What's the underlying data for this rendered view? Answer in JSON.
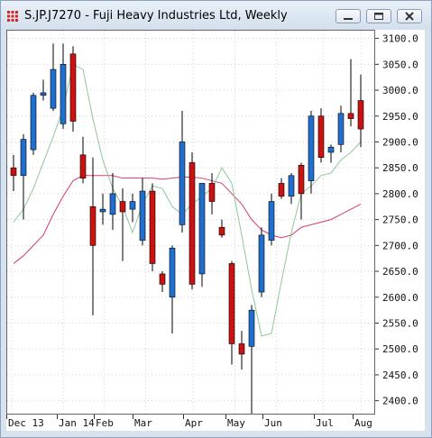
{
  "window": {
    "title": "S.JP.J7270 - Fuji Heavy Industries Ltd, Weekly"
  },
  "colors": {
    "up": "#1f6fcf",
    "down": "#cc1111",
    "ma_short": "#8fc79a",
    "ma_long": "#d63a78",
    "grid": "#d0d0d0"
  },
  "chart_data": {
    "type": "candlestick",
    "title": "S.JP.J7270 - Fuji Heavy Industries Ltd, Weekly",
    "ylim": [
      2375,
      3115
    ],
    "y_ticks": [
      "3100.0",
      "3050.0",
      "3000.0",
      "2950.0",
      "2900.0",
      "2850.0",
      "2800.0",
      "2750.0",
      "2700.0",
      "2650.0",
      "2600.0",
      "2550.0",
      "2500.0",
      "2450.0",
      "2400.0"
    ],
    "x_tick_labels": [
      "Dec 13",
      "Jan 14",
      "Feb",
      "Mar",
      "Apr",
      "May",
      "Jun",
      "Jul",
      "Aug"
    ],
    "candles": [
      {
        "o": 2850,
        "h": 2875,
        "l": 2805,
        "c": 2835
      },
      {
        "o": 2835,
        "h": 2915,
        "l": 2750,
        "c": 2905
      },
      {
        "o": 2885,
        "h": 2995,
        "l": 2875,
        "c": 2990
      },
      {
        "o": 2990,
        "h": 3020,
        "l": 2980,
        "c": 2995
      },
      {
        "o": 2965,
        "h": 3090,
        "l": 2960,
        "c": 3040
      },
      {
        "o": 2935,
        "h": 3090,
        "l": 2925,
        "c": 3050
      },
      {
        "o": 3070,
        "h": 3085,
        "l": 2920,
        "c": 2940
      },
      {
        "o": 2875,
        "h": 2910,
        "l": 2820,
        "c": 2830
      },
      {
        "o": 2775,
        "h": 2870,
        "l": 2565,
        "c": 2700
      },
      {
        "o": 2765,
        "h": 2800,
        "l": 2740,
        "c": 2770
      },
      {
        "o": 2760,
        "h": 2840,
        "l": 2730,
        "c": 2800
      },
      {
        "o": 2785,
        "h": 2810,
        "l": 2670,
        "c": 2765
      },
      {
        "o": 2770,
        "h": 2800,
        "l": 2745,
        "c": 2785
      },
      {
        "o": 2710,
        "h": 2830,
        "l": 2700,
        "c": 2805
      },
      {
        "o": 2805,
        "h": 2820,
        "l": 2650,
        "c": 2665
      },
      {
        "o": 2645,
        "h": 2650,
        "l": 2610,
        "c": 2625
      },
      {
        "o": 2600,
        "h": 2700,
        "l": 2530,
        "c": 2695
      },
      {
        "o": 2740,
        "h": 2960,
        "l": 2725,
        "c": 2900
      },
      {
        "o": 2860,
        "h": 2880,
        "l": 2615,
        "c": 2625
      },
      {
        "o": 2645,
        "h": 2820,
        "l": 2620,
        "c": 2820
      },
      {
        "o": 2820,
        "h": 2840,
        "l": 2760,
        "c": 2785
      },
      {
        "o": 2735,
        "h": 2750,
        "l": 2715,
        "c": 2720
      },
      {
        "o": 2665,
        "h": 2670,
        "l": 2470,
        "c": 2510
      },
      {
        "o": 2510,
        "h": 2535,
        "l": 2460,
        "c": 2490
      },
      {
        "o": 2505,
        "h": 2585,
        "l": 2375,
        "c": 2575
      },
      {
        "o": 2610,
        "h": 2735,
        "l": 2600,
        "c": 2720
      },
      {
        "o": 2710,
        "h": 2800,
        "l": 2700,
        "c": 2785
      },
      {
        "o": 2820,
        "h": 2830,
        "l": 2790,
        "c": 2795
      },
      {
        "o": 2795,
        "h": 2840,
        "l": 2780,
        "c": 2835
      },
      {
        "o": 2855,
        "h": 2860,
        "l": 2750,
        "c": 2800
      },
      {
        "o": 2825,
        "h": 2960,
        "l": 2800,
        "c": 2950
      },
      {
        "o": 2950,
        "h": 2965,
        "l": 2860,
        "c": 2870
      },
      {
        "o": 2880,
        "h": 2895,
        "l": 2860,
        "c": 2890
      },
      {
        "o": 2895,
        "h": 2970,
        "l": 2880,
        "c": 2955
      },
      {
        "o": 2955,
        "h": 3060,
        "l": 2930,
        "c": 2945
      },
      {
        "o": 2980,
        "h": 3030,
        "l": 2890,
        "c": 2925
      }
    ],
    "ma_short": [
      2745,
      2770,
      2810,
      2860,
      2910,
      2965,
      3050,
      3040,
      2945,
      2865,
      2810,
      2775,
      2725,
      2780,
      2815,
      2810,
      2775,
      2760,
      2780,
      2795,
      2810,
      2850,
      2820,
      2720,
      2615,
      2525,
      2530,
      2630,
      2725,
      2800,
      2815,
      2835,
      2840,
      2865,
      2880,
      2900
    ],
    "ma_long": [
      2665,
      2680,
      2700,
      2720,
      2760,
      2795,
      2825,
      2835,
      2835,
      2835,
      2835,
      2830,
      2830,
      2830,
      2830,
      2828,
      2830,
      2832,
      2832,
      2830,
      2825,
      2820,
      2800,
      2780,
      2750,
      2730,
      2720,
      2715,
      2720,
      2735,
      2740,
      2745,
      2750,
      2760,
      2770,
      2780
    ]
  }
}
